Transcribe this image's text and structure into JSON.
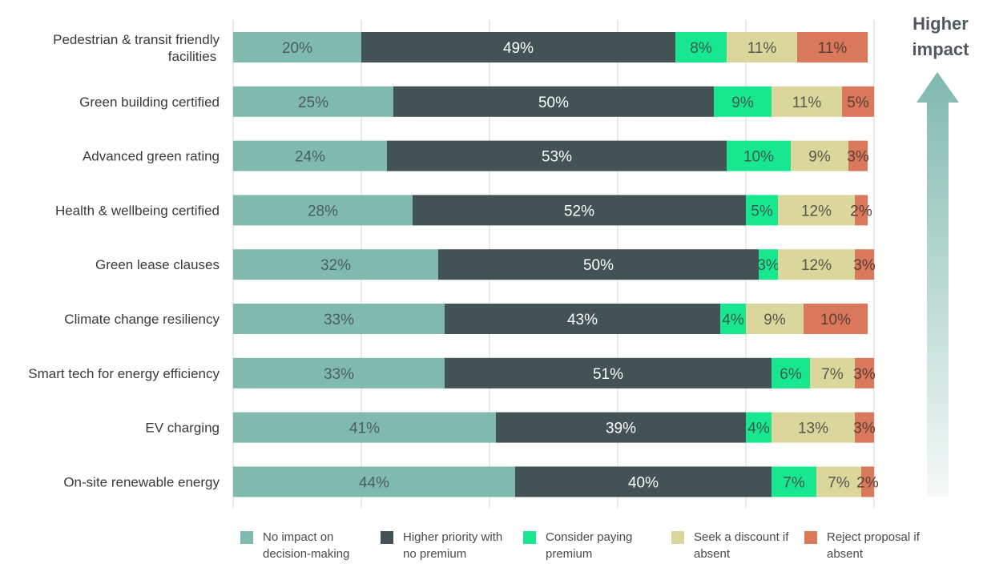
{
  "chart_data": {
    "type": "bar",
    "orientation": "horizontal",
    "stacked": true,
    "categories": [
      "Pedestrian & transit friendly facilities",
      "Green building certified",
      "Advanced green rating",
      "Health & wellbeing certified",
      "Green lease clauses",
      "Climate change resiliency",
      "Smart tech for energy efficiency",
      "EV charging",
      "On-site renewable energy"
    ],
    "series": [
      {
        "name": "No impact on decision-making",
        "color": "#80b9ad",
        "label_color": "#4a5f5c",
        "values": [
          20,
          25,
          24,
          28,
          32,
          33,
          33,
          41,
          44
        ]
      },
      {
        "name": "Higher priority with no premium",
        "color": "#435254",
        "label_color": "#ffffff",
        "values": [
          49,
          50,
          53,
          52,
          50,
          43,
          51,
          39,
          40
        ]
      },
      {
        "name": "Consider paying premium",
        "color": "#17e88f",
        "label_color": "#3d5a50",
        "values": [
          8,
          9,
          10,
          5,
          3,
          4,
          6,
          4,
          7
        ]
      },
      {
        "name": "Seek a discount if absent",
        "color": "#dbd79c",
        "label_color": "#56584a",
        "values": [
          11,
          11,
          9,
          12,
          12,
          9,
          7,
          13,
          7
        ]
      },
      {
        "name": "Reject proposal if absent",
        "color": "#d9785b",
        "label_color": "#5a3e36",
        "values": [
          11,
          5,
          3,
          2,
          3,
          10,
          3,
          3,
          2
        ]
      }
    ],
    "value_suffix": "%",
    "xlim": [
      0,
      100
    ],
    "grid": true,
    "legend_position": "bottom",
    "annotation": {
      "line1": "Higher",
      "line2": "impact",
      "arrow": "up"
    }
  }
}
